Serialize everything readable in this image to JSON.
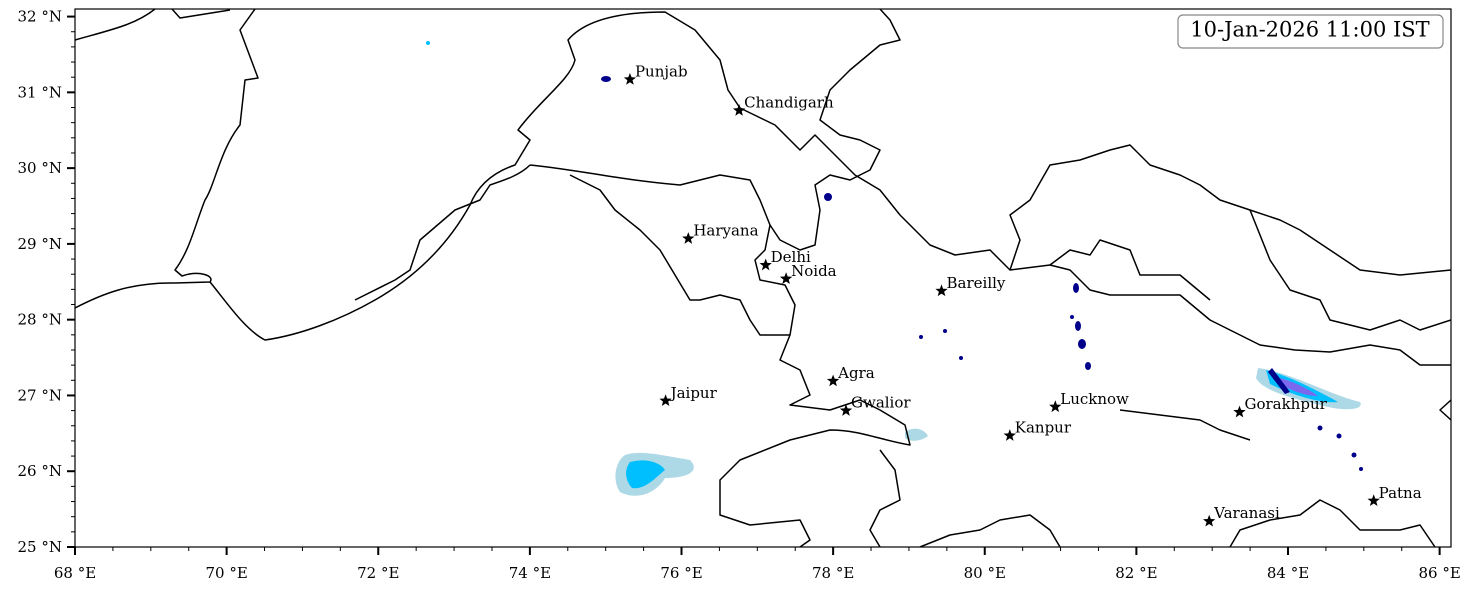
{
  "map": {
    "timestamp": "10-Jan-2026 11:00 IST",
    "xlim": [
      68,
      86.15
    ],
    "ylim": [
      25,
      32.1
    ],
    "xticks": [
      {
        "value": 68,
        "label": "68 °E"
      },
      {
        "value": 70,
        "label": "70 °E"
      },
      {
        "value": 72,
        "label": "72 °E"
      },
      {
        "value": 74,
        "label": "74 °E"
      },
      {
        "value": 76,
        "label": "76 °E"
      },
      {
        "value": 78,
        "label": "78 °E"
      },
      {
        "value": 80,
        "label": "80 °E"
      },
      {
        "value": 82,
        "label": "82 °E"
      },
      {
        "value": 84,
        "label": "84 °E"
      },
      {
        "value": 86,
        "label": "86 °E"
      }
    ],
    "yticks": [
      {
        "value": 25,
        "label": "25 °N"
      },
      {
        "value": 26,
        "label": "26 °N"
      },
      {
        "value": 27,
        "label": "27 °N"
      },
      {
        "value": 28,
        "label": "28 °N"
      },
      {
        "value": 29,
        "label": "29 °N"
      },
      {
        "value": 30,
        "label": "30 °N"
      },
      {
        "value": 31,
        "label": "31 °N"
      },
      {
        "value": 32,
        "label": "32 °N"
      }
    ],
    "cities": [
      {
        "name": "Punjab",
        "lon": 75.32,
        "lat": 31.17
      },
      {
        "name": "Chandigarh",
        "lon": 76.76,
        "lat": 30.76
      },
      {
        "name": "Haryana",
        "lon": 76.09,
        "lat": 29.07
      },
      {
        "name": "Delhi",
        "lon": 77.11,
        "lat": 28.72
      },
      {
        "name": "Noida",
        "lon": 77.38,
        "lat": 28.54
      },
      {
        "name": "Bareilly",
        "lon": 79.43,
        "lat": 28.38
      },
      {
        "name": "Agra",
        "lon": 78.0,
        "lat": 27.19
      },
      {
        "name": "Jaipur",
        "lon": 75.79,
        "lat": 26.93
      },
      {
        "name": "Gwalior",
        "lon": 78.17,
        "lat": 26.8
      },
      {
        "name": "Lucknow",
        "lon": 80.93,
        "lat": 26.85
      },
      {
        "name": "Kanpur",
        "lon": 80.33,
        "lat": 26.47
      },
      {
        "name": "Gorakhpur",
        "lon": 83.36,
        "lat": 26.78
      },
      {
        "name": "Varanasi",
        "lon": 82.96,
        "lat": 25.34
      },
      {
        "name": "Patna",
        "lon": 85.13,
        "lat": 25.61
      }
    ]
  }
}
